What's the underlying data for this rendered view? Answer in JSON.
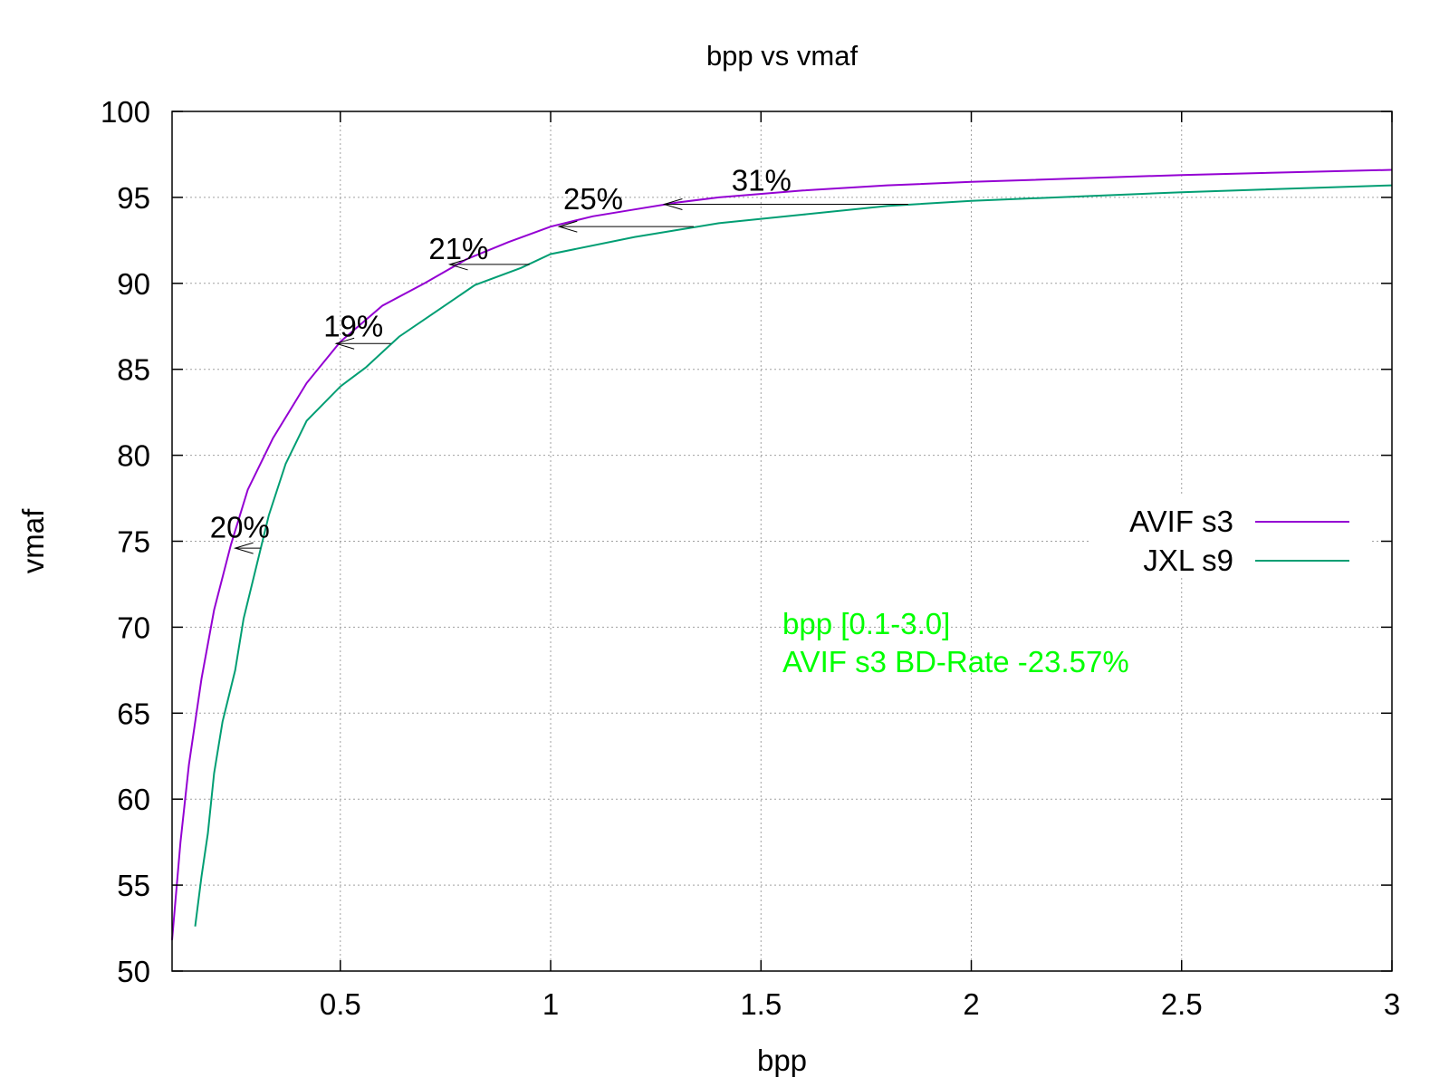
{
  "chart_data": {
    "type": "line",
    "title": "bpp vs vmaf",
    "xlabel": "bpp",
    "ylabel": "vmaf",
    "xlim": [
      0.1,
      3.0
    ],
    "ylim": [
      50,
      100
    ],
    "xticks": [
      0.5,
      1,
      1.5,
      2,
      2.5,
      3
    ],
    "xtick_labels": [
      "0.5",
      "1",
      "1.5",
      "2",
      "2.5",
      "3"
    ],
    "yticks": [
      50,
      55,
      60,
      65,
      70,
      75,
      80,
      85,
      90,
      95,
      100
    ],
    "ytick_labels": [
      "50",
      "55",
      "60",
      "65",
      "70",
      "75",
      "80",
      "85",
      "90",
      "95",
      "100"
    ],
    "grid": true,
    "legend_position": "right",
    "series": [
      {
        "name": "AVIF s3",
        "color": "#9400d3",
        "points": [
          [
            0.1,
            51.8
          ],
          [
            0.12,
            57.5
          ],
          [
            0.14,
            62.0
          ],
          [
            0.17,
            67.0
          ],
          [
            0.2,
            71.0
          ],
          [
            0.24,
            74.8
          ],
          [
            0.28,
            78.0
          ],
          [
            0.34,
            81.0
          ],
          [
            0.42,
            84.2
          ],
          [
            0.5,
            86.6
          ],
          [
            0.6,
            88.7
          ],
          [
            0.7,
            90.0
          ],
          [
            0.8,
            91.4
          ],
          [
            0.9,
            92.4
          ],
          [
            1.0,
            93.3
          ],
          [
            1.1,
            93.9
          ],
          [
            1.2,
            94.3
          ],
          [
            1.3,
            94.7
          ],
          [
            1.4,
            95.0
          ],
          [
            1.6,
            95.4
          ],
          [
            1.8,
            95.7
          ],
          [
            2.0,
            95.9
          ],
          [
            2.5,
            96.3
          ],
          [
            3.0,
            96.6
          ]
        ]
      },
      {
        "name": "JXL s9",
        "color": "#009e73",
        "points": [
          [
            0.155,
            52.6
          ],
          [
            0.17,
            55.5
          ],
          [
            0.185,
            58.0
          ],
          [
            0.2,
            61.5
          ],
          [
            0.22,
            64.5
          ],
          [
            0.25,
            67.5
          ],
          [
            0.27,
            70.5
          ],
          [
            0.3,
            73.5
          ],
          [
            0.33,
            76.5
          ],
          [
            0.37,
            79.5
          ],
          [
            0.42,
            82.0
          ],
          [
            0.5,
            84.0
          ],
          [
            0.56,
            85.1
          ],
          [
            0.64,
            86.9
          ],
          [
            0.73,
            88.4
          ],
          [
            0.82,
            89.9
          ],
          [
            0.93,
            90.9
          ],
          [
            1.0,
            91.7
          ],
          [
            1.2,
            92.7
          ],
          [
            1.4,
            93.5
          ],
          [
            1.6,
            94.0
          ],
          [
            1.8,
            94.5
          ],
          [
            2.0,
            94.8
          ],
          [
            2.5,
            95.3
          ],
          [
            3.0,
            95.7
          ]
        ]
      }
    ],
    "annotations": [
      {
        "text": "20%",
        "x": 0.19,
        "y": 75.2
      },
      {
        "text": "19%",
        "x": 0.46,
        "y": 86.9
      },
      {
        "text": "21%",
        "x": 0.71,
        "y": 91.4
      },
      {
        "text": "25%",
        "x": 1.03,
        "y": 94.3
      },
      {
        "text": "31%",
        "x": 1.43,
        "y": 95.4
      }
    ],
    "arrows": [
      {
        "from": [
          0.31,
          74.6
        ],
        "to": [
          0.25,
          74.6
        ]
      },
      {
        "from": [
          0.62,
          86.5
        ],
        "to": [
          0.49,
          86.5
        ]
      },
      {
        "from": [
          0.95,
          91.1
        ],
        "to": [
          0.76,
          91.1
        ]
      },
      {
        "from": [
          1.34,
          93.3
        ],
        "to": [
          1.02,
          93.3
        ]
      },
      {
        "from": [
          1.85,
          94.6
        ],
        "to": [
          1.27,
          94.6
        ]
      }
    ],
    "note_color": "#00ff00",
    "notes": [
      "bpp [0.1-3.0]",
      "AVIF s3 BD-Rate -23.57%"
    ]
  }
}
